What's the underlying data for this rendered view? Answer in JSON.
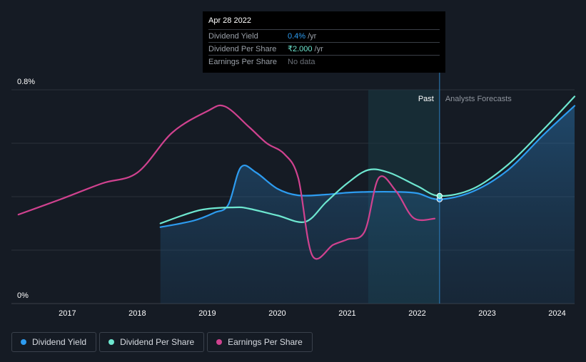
{
  "tooltip": {
    "date": "Apr 28 2022",
    "rows": [
      {
        "label": "Dividend Yield",
        "value": "0.4%",
        "unit": "/yr"
      },
      {
        "label": "Dividend Per Share",
        "value": "₹2.000",
        "unit": "/yr"
      },
      {
        "label": "Earnings Per Share",
        "value": "No data",
        "unit": ""
      }
    ]
  },
  "zones": {
    "past": "Past",
    "forecast": "Analysts Forecasts"
  },
  "legend": [
    {
      "label": "Dividend Yield",
      "color": "#2d9cf0"
    },
    {
      "label": "Dividend Per Share",
      "color": "#6ee7d0"
    },
    {
      "label": "Earnings Per Share",
      "color": "#d0428f"
    }
  ],
  "chart_data": {
    "type": "line",
    "title": "",
    "xlabel": "",
    "ylabel": "",
    "y_tick_labels": [
      "0.8%",
      "0%"
    ],
    "x_tick_labels": [
      "2017",
      "2018",
      "2019",
      "2020",
      "2021",
      "2022",
      "2023",
      "2024"
    ],
    "xlim": [
      2016.2,
      2024.25
    ],
    "ylim": [
      0,
      0.8
    ],
    "highlight_range": [
      2021.3,
      2022.32
    ],
    "cursor_x": 2022.32,
    "series": [
      {
        "name": "Dividend Yield",
        "color": "#2d9cf0",
        "filled": true,
        "points": [
          [
            2018.33,
            0.286
          ],
          [
            2018.8,
            0.31
          ],
          [
            2019.1,
            0.34
          ],
          [
            2019.3,
            0.37
          ],
          [
            2019.48,
            0.51
          ],
          [
            2019.7,
            0.49
          ],
          [
            2020.0,
            0.43
          ],
          [
            2020.3,
            0.405
          ],
          [
            2020.7,
            0.408
          ],
          [
            2021.0,
            0.415
          ],
          [
            2021.3,
            0.418
          ],
          [
            2021.7,
            0.418
          ],
          [
            2022.0,
            0.413
          ],
          [
            2022.32,
            0.39
          ],
          [
            2022.8,
            0.42
          ],
          [
            2023.3,
            0.5
          ],
          [
            2023.8,
            0.63
          ],
          [
            2024.25,
            0.74
          ]
        ]
      },
      {
        "name": "Dividend Per Share",
        "color": "#6ee7d0",
        "filled": false,
        "points": [
          [
            2018.33,
            0.3
          ],
          [
            2018.9,
            0.35
          ],
          [
            2019.4,
            0.36
          ],
          [
            2019.6,
            0.355
          ],
          [
            2020.0,
            0.33
          ],
          [
            2020.4,
            0.306
          ],
          [
            2020.7,
            0.38
          ],
          [
            2021.0,
            0.45
          ],
          [
            2021.3,
            0.5
          ],
          [
            2021.6,
            0.49
          ],
          [
            2022.0,
            0.44
          ],
          [
            2022.32,
            0.403
          ],
          [
            2022.8,
            0.43
          ],
          [
            2023.3,
            0.52
          ],
          [
            2023.8,
            0.65
          ],
          [
            2024.25,
            0.775
          ]
        ]
      },
      {
        "name": "Earnings Per Share",
        "color": "#d0428f",
        "filled": false,
        "points": [
          [
            2016.3,
            0.333
          ],
          [
            2016.9,
            0.39
          ],
          [
            2017.5,
            0.45
          ],
          [
            2018.0,
            0.49
          ],
          [
            2018.5,
            0.64
          ],
          [
            2019.0,
            0.72
          ],
          [
            2019.25,
            0.738
          ],
          [
            2019.6,
            0.66
          ],
          [
            2019.85,
            0.6
          ],
          [
            2020.1,
            0.56
          ],
          [
            2020.3,
            0.47
          ],
          [
            2020.5,
            0.18
          ],
          [
            2020.8,
            0.22
          ],
          [
            2021.0,
            0.24
          ],
          [
            2021.25,
            0.27
          ],
          [
            2021.45,
            0.47
          ],
          [
            2021.7,
            0.42
          ],
          [
            2021.95,
            0.32
          ],
          [
            2022.25,
            0.318
          ]
        ]
      }
    ]
  }
}
